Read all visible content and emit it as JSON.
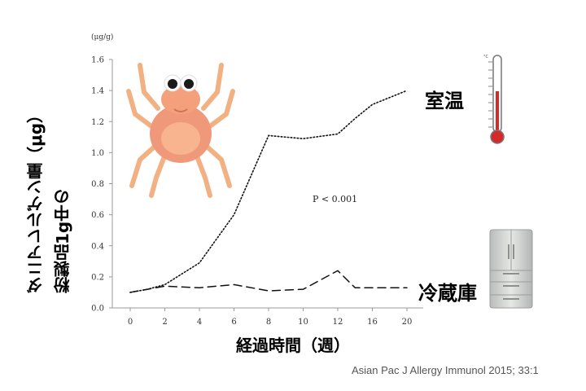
{
  "chart_data": {
    "type": "line",
    "unit": "(μg/g)",
    "ylabel": [
      "粉製品1g中の",
      "ダニアレルゲン量（μg）"
    ],
    "xlabel": "経過時間（週）",
    "x": [
      0,
      1,
      2,
      4,
      6,
      8,
      10,
      12,
      14,
      16,
      20
    ],
    "x_ticks": [
      "0",
      "2",
      "4",
      "6",
      "8",
      "10",
      "12",
      "16",
      "20"
    ],
    "y_ticks": [
      "0.0",
      "0.2",
      "0.4",
      "0.6",
      "0.8",
      "1.0",
      "1.2",
      "1.4",
      "1.6"
    ],
    "ylim": [
      0,
      1.6
    ],
    "series": [
      {
        "name": "室温",
        "style": "dotted",
        "values": [
          0.1,
          0.12,
          0.15,
          0.29,
          0.6,
          1.11,
          1.09,
          1.12,
          1.22,
          1.31,
          1.4
        ]
      },
      {
        "name": "冷蔵庫",
        "style": "dashed",
        "values": [
          0.1,
          0.12,
          0.14,
          0.13,
          0.15,
          0.11,
          0.12,
          0.24,
          0.13,
          0.13,
          0.13
        ]
      }
    ],
    "annotation": "P < 0.001",
    "citation": "Asian Pac J Allergy Immunol 2015; 33:1",
    "grid": false
  },
  "icons": [
    "mite-icon",
    "thermometer-icon",
    "refrigerator-icon"
  ],
  "colors": {
    "line": "#111111",
    "mite_body": "#f4a07a",
    "thermometer_red": "#d42a2a",
    "fridge": "#c8cbc9"
  }
}
